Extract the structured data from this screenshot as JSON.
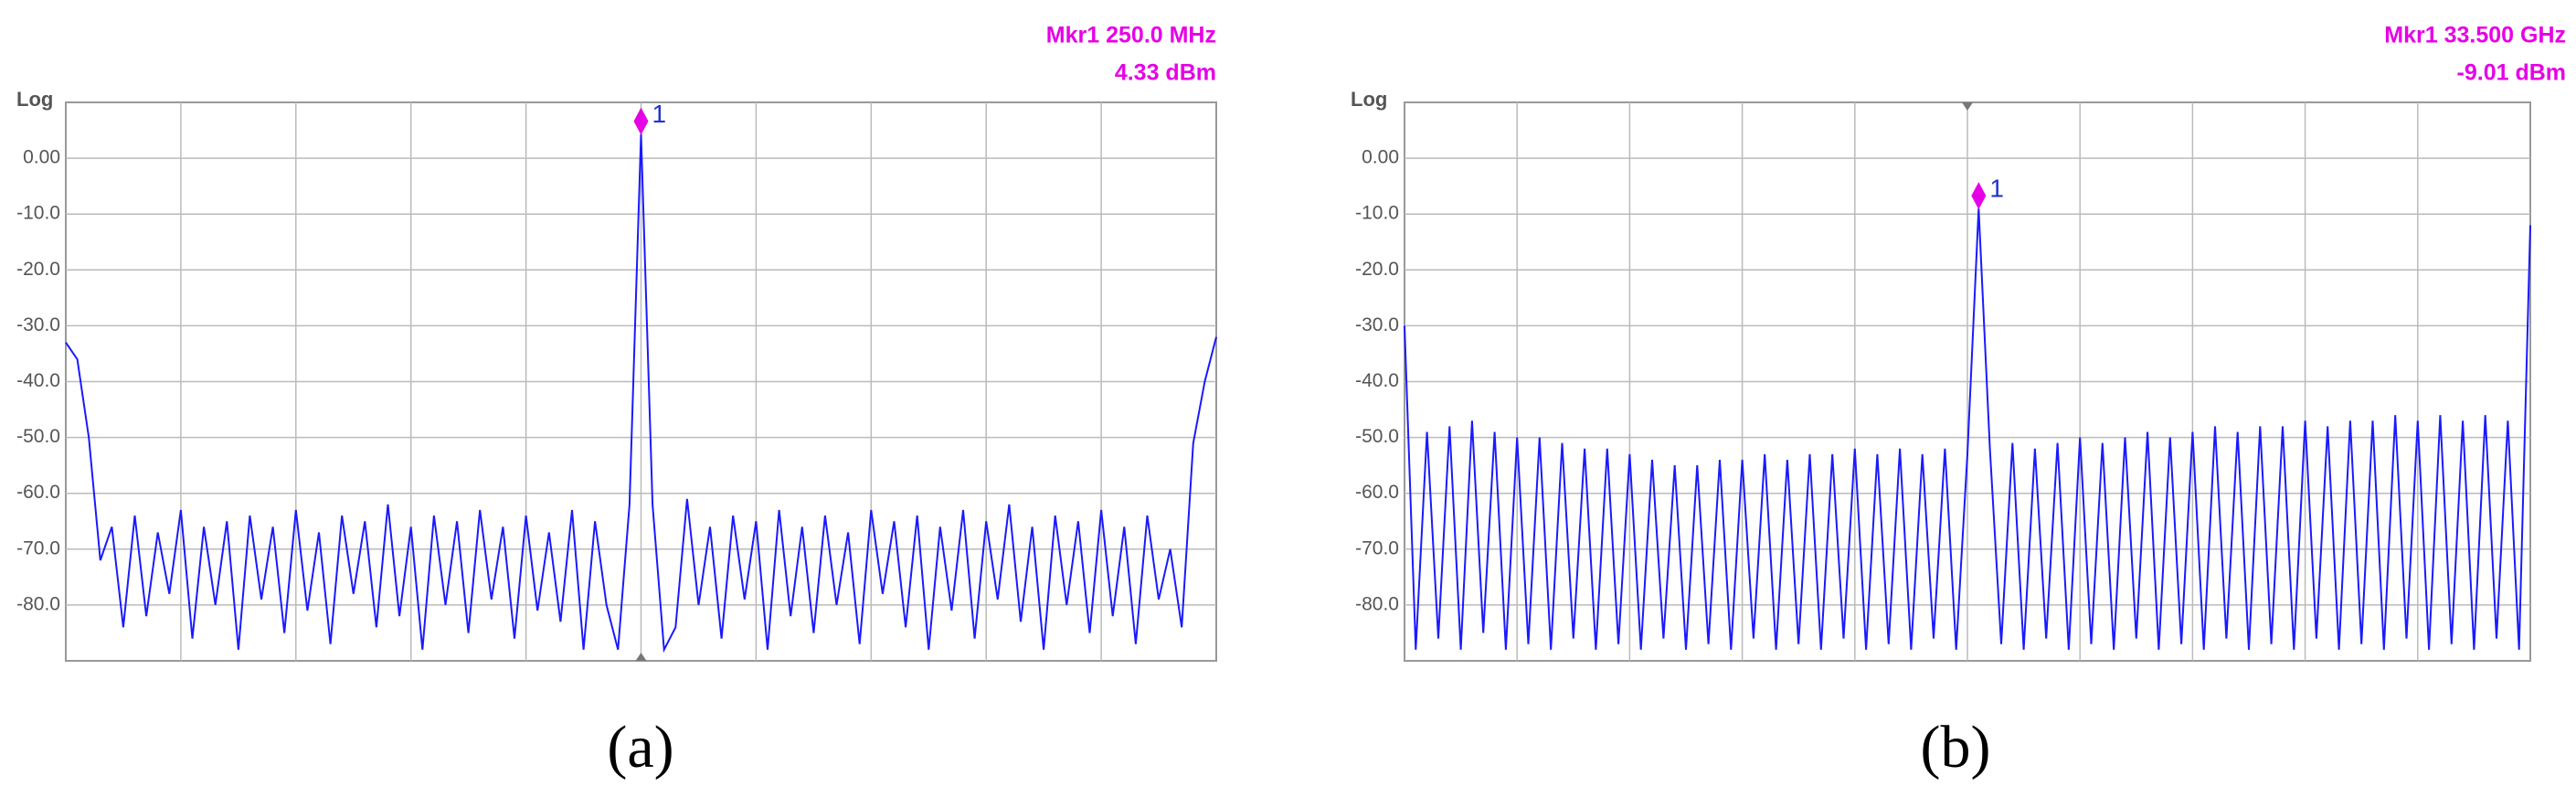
{
  "chart_data": [
    {
      "type": "spectrum",
      "caption": "(a)",
      "scale_label": "Log",
      "marker": {
        "text": "Mkr1  250.0 MHz",
        "value": 4.33,
        "value_label": "4.33 dBm",
        "id": "1"
      },
      "color": "#1a1aff",
      "grid": true,
      "ylim": [
        -90,
        10
      ],
      "yticks": [
        {
          "value": 0,
          "label": "0.00"
        },
        {
          "value": -10,
          "label": "-10.0"
        },
        {
          "value": -20,
          "label": "-20.0"
        },
        {
          "value": -30,
          "label": "-30.0"
        },
        {
          "value": -40,
          "label": "-40.0"
        },
        {
          "value": -50,
          "label": "-50.0"
        },
        {
          "value": -60,
          "label": "-60.0"
        },
        {
          "value": -70,
          "label": "-70.0"
        },
        {
          "value": -80,
          "label": "-80.0"
        }
      ],
      "values": [
        -33,
        -36,
        -50,
        -72,
        -66,
        -84,
        -64,
        -82,
        -67,
        -78,
        -63,
        -86,
        -66,
        -80,
        -65,
        -88,
        -64,
        -79,
        -66,
        -85,
        -63,
        -81,
        -67,
        -87,
        -64,
        -78,
        -65,
        -84,
        -62,
        -82,
        -66,
        -88,
        -64,
        -80,
        -65,
        -85,
        -63,
        -79,
        -66,
        -86,
        -64,
        -81,
        -67,
        -83,
        -63,
        -88,
        -65,
        -80,
        -88,
        -62,
        4.33,
        -62,
        -88,
        -84,
        -61,
        -80,
        -66,
        -86,
        -64,
        -79,
        -65,
        -88,
        -63,
        -82,
        -66,
        -85,
        -64,
        -80,
        -67,
        -87,
        -63,
        -78,
        -65,
        -84,
        -64,
        -88,
        -66,
        -81,
        -63,
        -86,
        -65,
        -79,
        -62,
        -83,
        -66,
        -88,
        -64,
        -80,
        -65,
        -85,
        -63,
        -82,
        -66,
        -87,
        -64,
        -79,
        -70,
        -84,
        -51,
        -40,
        -32
      ]
    },
    {
      "type": "spectrum",
      "caption": "(b)",
      "scale_label": "Log",
      "marker": {
        "text": "Mkr1  33.500 GHz",
        "value": -9.01,
        "value_label": "-9.01 dBm",
        "id": "1"
      },
      "color": "#1a1aff",
      "grid": true,
      "ylim": [
        -90,
        10
      ],
      "yticks": [
        {
          "value": 0,
          "label": "0.00"
        },
        {
          "value": -10,
          "label": "-10.0"
        },
        {
          "value": -20,
          "label": "-20.0"
        },
        {
          "value": -30,
          "label": "-30.0"
        },
        {
          "value": -40,
          "label": "-40.0"
        },
        {
          "value": -50,
          "label": "-50.0"
        },
        {
          "value": -60,
          "label": "-60.0"
        },
        {
          "value": -70,
          "label": "-70.0"
        },
        {
          "value": -80,
          "label": "-80.0"
        }
      ],
      "values": [
        -30,
        -88,
        -49,
        -86,
        -48,
        -88,
        -47,
        -85,
        -49,
        -88,
        -50,
        -87,
        -50,
        -88,
        -51,
        -86,
        -52,
        -88,
        -52,
        -87,
        -53,
        -88,
        -54,
        -86,
        -55,
        -88,
        -55,
        -87,
        -54,
        -88,
        -54,
        -86,
        -53,
        -88,
        -54,
        -87,
        -53,
        -88,
        -53,
        -86,
        -52,
        -88,
        -53,
        -87,
        -52,
        -88,
        -53,
        -86,
        -52,
        -88,
        -53,
        -9.01,
        -52,
        -87,
        -51,
        -88,
        -52,
        -86,
        -51,
        -88,
        -50,
        -87,
        -51,
        -88,
        -50,
        -86,
        -49,
        -88,
        -50,
        -87,
        -49,
        -88,
        -48,
        -86,
        -49,
        -88,
        -48,
        -87,
        -48,
        -88,
        -47,
        -86,
        -48,
        -88,
        -47,
        -87,
        -47,
        -88,
        -46,
        -86,
        -47,
        -88,
        -46,
        -87,
        -47,
        -88,
        -46,
        -86,
        -47,
        -88,
        -12
      ]
    }
  ]
}
